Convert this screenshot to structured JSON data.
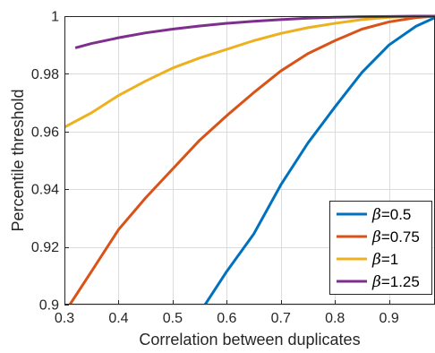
{
  "chart_data": {
    "type": "line",
    "xlabel": "Correlation between duplicates",
    "ylabel": "Percentile threshold",
    "xlim": [
      0.3,
      0.985
    ],
    "ylim": [
      0.9,
      1.0
    ],
    "xticks": [
      0.3,
      0.4,
      0.5,
      0.6,
      0.7,
      0.8,
      0.9
    ],
    "xtick_labels": [
      "0.3",
      "0.4",
      "0.5",
      "0.6",
      "0.7",
      "0.8",
      "0.9"
    ],
    "yticks": [
      0.9,
      0.92,
      0.94,
      0.96,
      0.98,
      1.0
    ],
    "ytick_labels": [
      "0.9",
      "0.92",
      "0.94",
      "0.96",
      "0.98",
      "1"
    ],
    "grid": true,
    "legend_position": "bottom-right",
    "series": [
      {
        "name": "β=0.5",
        "symbol": "β",
        "value_text": "=0.5",
        "color": "#0072BD",
        "x": [
          0.56,
          0.6,
          0.65,
          0.7,
          0.75,
          0.8,
          0.85,
          0.9,
          0.95,
          0.985
        ],
        "y": [
          0.9,
          0.9115,
          0.9245,
          0.9415,
          0.956,
          0.9685,
          0.9805,
          0.99,
          0.9965,
          0.9995
        ]
      },
      {
        "name": "β=0.75",
        "symbol": "β",
        "value_text": "=0.75",
        "color": "#D95319",
        "x": [
          0.31,
          0.35,
          0.4,
          0.45,
          0.5,
          0.55,
          0.6,
          0.65,
          0.7,
          0.75,
          0.8,
          0.85,
          0.9,
          0.95,
          0.985
        ],
        "y": [
          0.9,
          0.9115,
          0.926,
          0.937,
          0.947,
          0.957,
          0.9655,
          0.9735,
          0.981,
          0.987,
          0.9915,
          0.9955,
          0.998,
          0.9995,
          1.0
        ]
      },
      {
        "name": "β=1",
        "symbol": "β",
        "value_text": "=1",
        "color": "#EDB120",
        "x": [
          0.3,
          0.35,
          0.4,
          0.45,
          0.5,
          0.55,
          0.6,
          0.65,
          0.7,
          0.75,
          0.8,
          0.85,
          0.9,
          0.95,
          0.985
        ],
        "y": [
          0.9615,
          0.9665,
          0.9725,
          0.9775,
          0.982,
          0.9855,
          0.9885,
          0.9915,
          0.994,
          0.996,
          0.9975,
          0.9988,
          0.9996,
          1.0,
          1.0
        ]
      },
      {
        "name": "β=1.25",
        "symbol": "β",
        "value_text": "=1.25",
        "color": "#7E2F8E",
        "x": [
          0.32,
          0.35,
          0.4,
          0.45,
          0.5,
          0.55,
          0.6,
          0.65,
          0.7,
          0.75,
          0.8,
          0.85,
          0.9,
          0.95,
          0.985
        ],
        "y": [
          0.989,
          0.9905,
          0.9925,
          0.9942,
          0.9955,
          0.9966,
          0.9975,
          0.9982,
          0.9988,
          0.9993,
          0.9996,
          0.9998,
          0.9999,
          1.0,
          1.0
        ]
      }
    ]
  }
}
